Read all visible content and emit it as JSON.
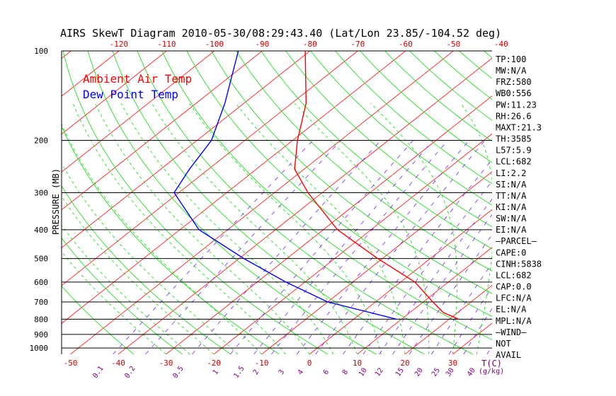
{
  "title": "AIRS SkewT Diagram 2010-05-30/08:29:43.40 (Lat/Lon 23.85/-104.52 deg)",
  "legend": {
    "ambient": "Ambient Air Temp",
    "dewpoint": "Dew Point Temp"
  },
  "colors": {
    "ambient": "#ff0000",
    "dewpoint": "#0000ff",
    "isotherm": "#ff2020",
    "dry_adiabat": "#22dd22",
    "moist_adiabat": "#22dd22",
    "mixing_ratio": "#8833ff",
    "isobar": "#000000"
  },
  "side_panel": [
    "TP:100",
    "MW:N/A",
    "FRZ:580",
    "WB0:556",
    "PW:11.23",
    "RH:26.6",
    "MAXT:21.3",
    "TH:3585",
    "L57:5.9",
    "LCL:682",
    "LI:2.2",
    "SI:N/A",
    "TT:N/A",
    "KI:N/A",
    "SW:N/A",
    "EI:N/A",
    "—PARCEL—",
    "CAPE:0",
    "CINH:5838",
    "LCL:682",
    "CAP:0.0",
    "LFC:N/A",
    "EL:N/A",
    "MPL:N/A",
    "—WIND—",
    "NOT",
    "AVAIL"
  ],
  "chart_data": {
    "type": "line",
    "title": "AIRS SkewT Diagram 2010-05-30/08:29:43.40 (Lat/Lon 23.85/-104.52 deg)",
    "ylabel": "PRESSURE (MB)",
    "xlabel": "T(C)",
    "y_scale": "log",
    "y_range_mb": [
      1050,
      100
    ],
    "pressure_ticks": [
      100,
      200,
      300,
      400,
      500,
      600,
      700,
      800,
      900,
      1000
    ],
    "bottom_temp_ticks": [
      -50,
      -40,
      -30,
      -20,
      -10,
      0,
      10,
      20,
      30
    ],
    "top_temp_ticks": [
      -120,
      -110,
      -100,
      -90,
      -80,
      -70,
      -60,
      -50,
      -40
    ],
    "mixing_ratio_labels": [
      "0.1",
      "0.2",
      "0.5",
      "1",
      "1.5",
      "2",
      "3",
      "4",
      "6",
      "8",
      "10",
      "12",
      "15",
      "20",
      "25",
      "30",
      "40"
    ],
    "mixing_ratio_unit": "(g/kg)",
    "series": [
      {
        "name": "Ambient Air Temp",
        "points": [
          {
            "p": 800,
            "t": 22
          },
          {
            "p": 760,
            "t": 17
          },
          {
            "p": 700,
            "t": 12
          },
          {
            "p": 600,
            "t": 3
          },
          {
            "p": 500,
            "t": -11
          },
          {
            "p": 400,
            "t": -27
          },
          {
            "p": 300,
            "t": -43
          },
          {
            "p": 250,
            "t": -52
          },
          {
            "p": 200,
            "t": -59
          },
          {
            "p": 150,
            "t": -67
          },
          {
            "p": 100,
            "t": -81
          }
        ]
      },
      {
        "name": "Dew Point Temp",
        "points": [
          {
            "p": 800,
            "t": 9
          },
          {
            "p": 700,
            "t": -10
          },
          {
            "p": 600,
            "t": -24
          },
          {
            "p": 500,
            "t": -39
          },
          {
            "p": 400,
            "t": -56
          },
          {
            "p": 300,
            "t": -71
          },
          {
            "p": 250,
            "t": -74
          },
          {
            "p": 200,
            "t": -77
          },
          {
            "p": 150,
            "t": -84
          },
          {
            "p": 100,
            "t": -95
          }
        ]
      }
    ]
  }
}
